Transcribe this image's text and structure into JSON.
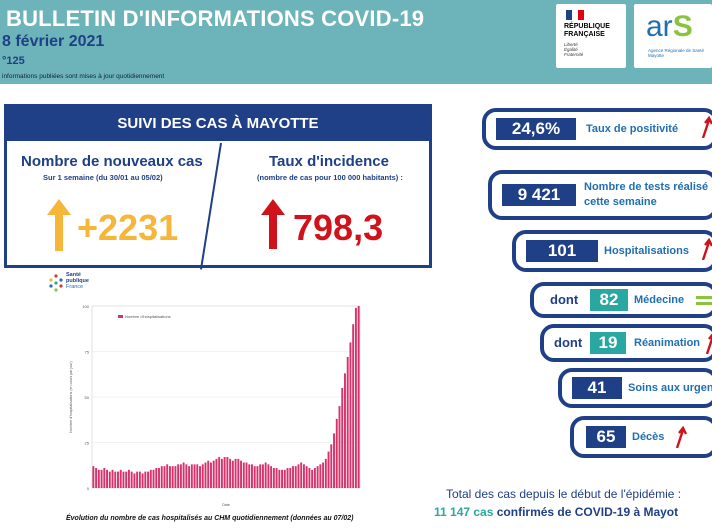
{
  "header": {
    "title": "BULLETIN D'INFORMATIONS COVID-19",
    "date": "8 février 2021",
    "number": "°125",
    "note": "informations publiées sont mises à jour quotidiennement",
    "rf_line1": "RÉPUBLIQUE",
    "rf_line2": "FRANÇAISE",
    "rf_motto": [
      "Liberté",
      "Égalité",
      "Fraternité"
    ],
    "ars_word": "ar",
    "ars_s": "S",
    "ars_sub": [
      "Agence Régionale de Santé",
      "Mayotte"
    ]
  },
  "suivi": {
    "heading": "SUIVI DES CAS À MAYOTTE",
    "left": {
      "title": "Nombre de nouveaux cas",
      "subtitle": "Sur 1 semaine (du 30/01 au 05/02)",
      "value": "+2231",
      "color": "#f5b63a"
    },
    "right": {
      "title": "Taux d'incidence",
      "subtitle": "(nombre de cas pour 100 000 habitants) :",
      "value": "798,3",
      "color": "#d0121b"
    }
  },
  "logo_sp": [
    "Santé",
    "publique",
    "France"
  ],
  "chart_data": {
    "type": "bar",
    "title": "",
    "legend": [
      "Nombre d'hospitalisations"
    ],
    "xlabel": "Date",
    "ylabel": "Nombre d'hospitalisations (en cours par jour)",
    "ylim": [
      0,
      100
    ],
    "yticks": [
      0,
      25,
      50,
      75,
      100
    ],
    "color": "#d6336c",
    "values": [
      12,
      11,
      10,
      10,
      11,
      10,
      9,
      10,
      9,
      9,
      10,
      9,
      9,
      10,
      9,
      8,
      9,
      9,
      8,
      9,
      9,
      10,
      10,
      11,
      11,
      12,
      12,
      13,
      12,
      12,
      12,
      13,
      13,
      14,
      13,
      12,
      13,
      13,
      13,
      12,
      13,
      14,
      15,
      14,
      15,
      16,
      17,
      16,
      17,
      17,
      16,
      15,
      16,
      16,
      15,
      14,
      14,
      13,
      13,
      12,
      12,
      13,
      13,
      14,
      13,
      12,
      11,
      11,
      10,
      10,
      10,
      11,
      11,
      12,
      12,
      13,
      14,
      13,
      12,
      11,
      10,
      11,
      12,
      13,
      14,
      16,
      20,
      24,
      30,
      38,
      45,
      55,
      63,
      72,
      80,
      90,
      99,
      100
    ]
  },
  "chart_caption": "Évolution du nombre de cas hospitalisés au CHM quotidiennement (données au 07/02)",
  "pills": {
    "positivite": {
      "value": "24,6%",
      "label": "Taux de positivité"
    },
    "tests": {
      "value": "9 421",
      "label1": "Nombre de tests réalisé",
      "label2": "cette semaine"
    },
    "hospit": {
      "value": "101",
      "label": "Hospitalisations"
    },
    "medecine": {
      "dont": "dont",
      "value": "82",
      "label": "Médecine"
    },
    "reanimation": {
      "dont": "dont",
      "value": "19",
      "label": "Réanimation"
    },
    "urgences": {
      "value": "41",
      "label": "Soins aux urgenc"
    },
    "deces": {
      "value": "65",
      "label": "Décès"
    }
  },
  "totals": {
    "line1": "Total des cas depuis le début de l'épidémie :",
    "number": "11 147 cas",
    "line2_rest": " confirmés de COVID-19 à Mayot"
  },
  "colors": {
    "navy": "#1f3f86",
    "teal": "#6cb4b9",
    "red": "#d0121b",
    "orange": "#f5b63a",
    "green": "#2aa7a0"
  }
}
